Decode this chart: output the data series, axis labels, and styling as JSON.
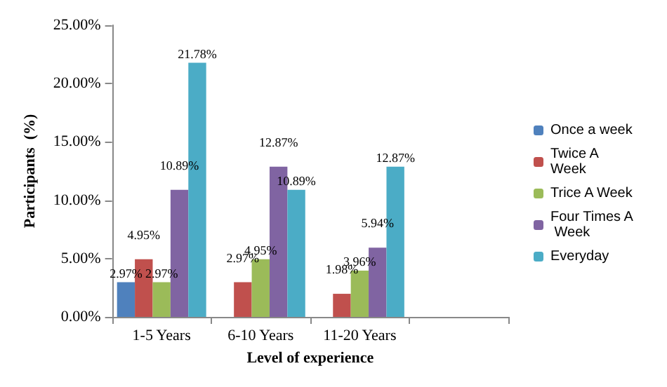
{
  "chart_data": {
    "type": "bar",
    "xlabel": "Level of experience",
    "ylabel": "Participants  (%)",
    "categories": [
      "1-5 Years",
      "6-10 Years",
      "11-20 Years"
    ],
    "series": [
      {
        "name": "Once a week",
        "color": "#4f81bd",
        "values": [
          2.97,
          null,
          null
        ],
        "value_labels": [
          "2.97%",
          null,
          null
        ]
      },
      {
        "name": "Twice A Week",
        "color": "#c0504d",
        "values": [
          4.95,
          2.97,
          1.98
        ],
        "value_labels": [
          "4.95%",
          "2.97%",
          "1.98%"
        ]
      },
      {
        "name": "Trice A Week",
        "color": "#9bbb59",
        "values": [
          2.97,
          4.95,
          3.96
        ],
        "value_labels": [
          "2.97%",
          "4.95%",
          "3.96%"
        ]
      },
      {
        "name": "Four Times A Week",
        "color": "#8064a2",
        "values": [
          10.89,
          12.87,
          5.94
        ],
        "value_labels": [
          "10.89%",
          "12.87%",
          "5.94%"
        ]
      },
      {
        "name": "Everyday",
        "color": "#4bacc6",
        "values": [
          21.78,
          10.89,
          12.87
        ],
        "value_labels": [
          "21.78%",
          "10.89%",
          "12.87%"
        ]
      }
    ],
    "ylim": [
      0,
      25
    ],
    "yticks": [
      {
        "value": 0,
        "label": "0.00%"
      },
      {
        "value": 5,
        "label": "5.00%"
      },
      {
        "value": 10,
        "label": "10.00%"
      },
      {
        "value": 15,
        "label": "15.00%"
      },
      {
        "value": 20,
        "label": "20.00%"
      },
      {
        "value": 25,
        "label": "25.00%"
      }
    ],
    "grid": false,
    "legend": "right"
  }
}
